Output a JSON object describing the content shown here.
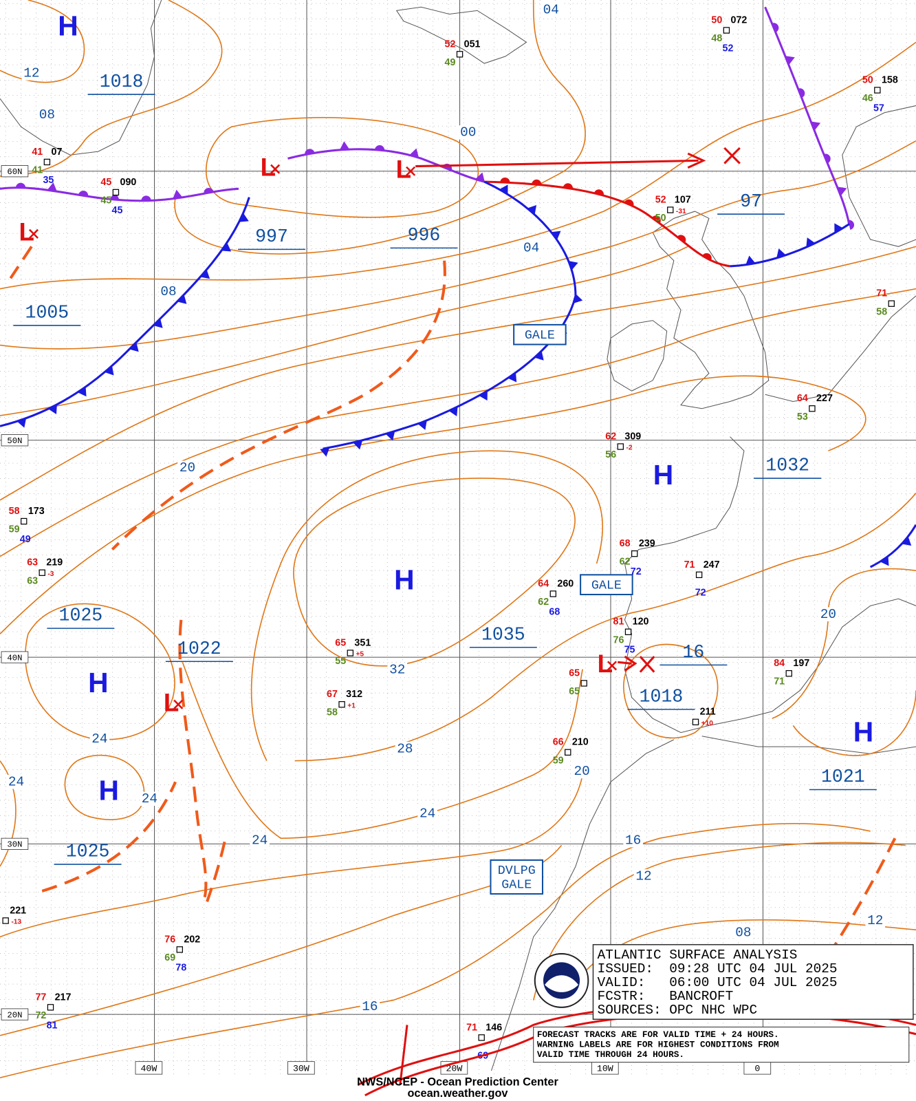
{
  "map": {
    "centers": [
      "H",
      "H",
      "H",
      "H",
      "H",
      "H",
      "L",
      "L",
      "L",
      "L",
      "L"
    ],
    "center_pressures": [
      "1018",
      "997",
      "996",
      "1005",
      "97",
      "1032",
      "1035",
      "1025",
      "1022",
      "1018",
      "1021",
      "1025",
      "16"
    ],
    "isobar_labels": [
      "12",
      "08",
      "04",
      "00",
      "04",
      "08",
      "20",
      "32",
      "28",
      "24",
      "24",
      "24",
      "24",
      "24",
      "20",
      "20",
      "16",
      "12",
      "08",
      "12",
      "16"
    ],
    "warnings": [
      [
        "GALE"
      ],
      [
        "GALE"
      ],
      [
        "DVLPG",
        "GALE"
      ]
    ],
    "latitudes": [
      "60N",
      "50N",
      "40N",
      "30N",
      "20N"
    ],
    "longitudes": [
      "40W",
      "30W",
      "20W",
      "10W",
      "0"
    ],
    "stations": [
      {
        "pressure": "072",
        "temp": "50",
        "dew": "48",
        "wind": "52"
      },
      {
        "pressure": "051",
        "temp": "52",
        "dew": "49"
      },
      {
        "pressure": "158",
        "temp": "50",
        "dew": "46",
        "wind": "57"
      },
      {
        "pressure": "07",
        "temp": "41",
        "dew": "41",
        "wind": "35"
      },
      {
        "pressure": "090",
        "temp": "45",
        "dew": "45",
        "wind": "45"
      },
      {
        "pressure": "107",
        "temp": "52",
        "dew": "50",
        "tendency": "-31"
      },
      {
        "temp": "71",
        "dew": "58"
      },
      {
        "pressure": "227",
        "temp": "64",
        "dew": "53"
      },
      {
        "pressure": "309",
        "temp": "62",
        "dew": "56",
        "tendency": "-2"
      },
      {
        "pressure": "173",
        "temp": "58",
        "dew": "59",
        "wind": "49"
      },
      {
        "pressure": "219",
        "temp": "63",
        "dew": "63",
        "tendency": "-3"
      },
      {
        "pressure": "239",
        "temp": "68",
        "dew": "62",
        "wind": "72"
      },
      {
        "pressure": "247",
        "temp": "71",
        "wind": "72"
      },
      {
        "pressure": "260",
        "temp": "64",
        "dew": "62",
        "wind": "68"
      },
      {
        "pressure": "120",
        "temp": "81",
        "dew": "76",
        "wind": "75"
      },
      {
        "pressure": "351",
        "temp": "65",
        "dew": "55",
        "tendency": "+5"
      },
      {
        "pressure": "312",
        "temp": "67",
        "dew": "58",
        "tendency": "+1"
      },
      {
        "pressure": "197",
        "temp": "84",
        "dew": "71"
      },
      {
        "pressure": "211",
        "tendency": "+10"
      },
      {
        "pressure": "210",
        "temp": "66",
        "dew": "59"
      },
      {
        "temp": "65",
        "dew": "65"
      },
      {
        "pressure": "221",
        "tendency": "-13"
      },
      {
        "pressure": "202",
        "temp": "76",
        "dew": "69",
        "wind": "78"
      },
      {
        "pressure": "217",
        "temp": "77",
        "dew": "72",
        "wind": "81"
      },
      {
        "pressure": "146",
        "temp": "71",
        "wind": "69"
      }
    ],
    "info_box": [
      "ATLANTIC SURFACE ANALYSIS",
      "ISSUED:  09:28 UTC 04 JUL 2025",
      "VALID:   06:00 UTC 04 JUL 2025",
      "FCSTR:   BANCROFT",
      "SOURCES: OPC NHC WPC"
    ],
    "notes": [
      "FORECAST TRACKS ARE FOR VALID TIME + 24 HOURS.",
      "WARNING LABELS ARE FOR HIGHEST CONDITIONS FROM",
      "VALID TIME THROUGH 24 HOURS."
    ],
    "footer": [
      "NWS/NCEP - Ocean Prediction Center",
      "ocean.weather.gov"
    ]
  }
}
